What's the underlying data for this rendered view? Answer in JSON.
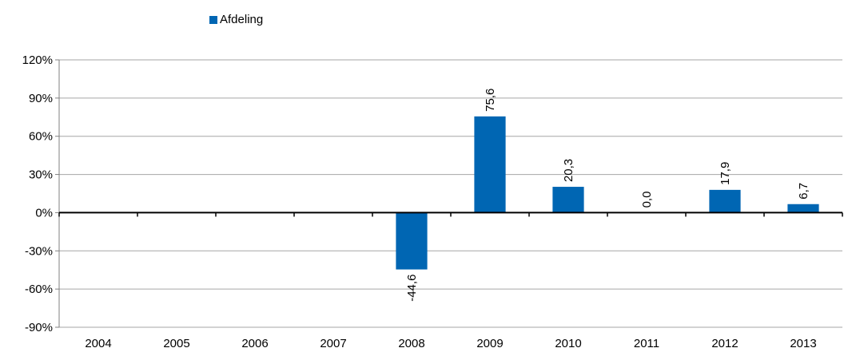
{
  "chart_data": {
    "type": "bar",
    "categories": [
      "2004",
      "2005",
      "2006",
      "2007",
      "2008",
      "2009",
      "2010",
      "2011",
      "2012",
      "2013"
    ],
    "series": [
      {
        "name": "Afdeling",
        "color": "#0066b3",
        "values": [
          null,
          null,
          null,
          null,
          -44.6,
          75.6,
          20.3,
          0.0,
          17.9,
          6.7
        ],
        "labels": [
          "",
          "",
          "",
          "",
          "-44,6",
          "75,6",
          "20,3",
          "0,0",
          "17,9",
          "6,7"
        ]
      }
    ],
    "ylim": [
      -90,
      120
    ],
    "yticks": [
      -90,
      -60,
      -30,
      0,
      30,
      60,
      90,
      120
    ],
    "ytick_labels": [
      "-90%",
      "-60%",
      "-30%",
      "0%",
      "30%",
      "60%",
      "90%",
      "120%"
    ],
    "grid": true,
    "legend_position": "top-left",
    "title": "",
    "xlabel": "",
    "ylabel": ""
  }
}
